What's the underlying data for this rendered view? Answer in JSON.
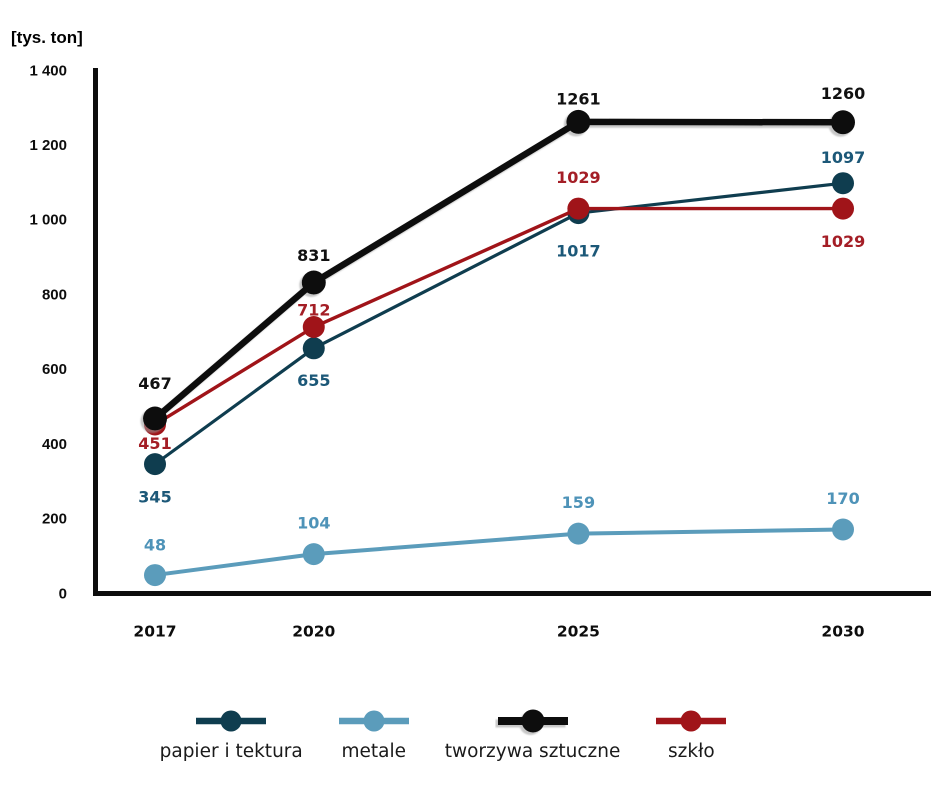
{
  "chart_data": {
    "type": "line",
    "title": "",
    "ylabel": "[tys. ton]",
    "x": [
      2017,
      2020,
      2025,
      2030
    ],
    "x_tick_labels": [
      "2017",
      "2020",
      "2025",
      "2030"
    ],
    "ylim": [
      0,
      1400
    ],
    "y_ticks": [
      0,
      200,
      400,
      600,
      800,
      1000,
      1200,
      1400
    ],
    "y_tick_labels": [
      "0",
      "200",
      "400",
      "600",
      "800",
      "1 000",
      "1 200",
      "1 400"
    ],
    "grid": false,
    "legend_position": "bottom",
    "axis_color": "#0d0d0d",
    "series": [
      {
        "name": "papier i tektura",
        "values": [
          345,
          655,
          1017,
          1097
        ],
        "color": "#0f3d4f",
        "label_color": "#1c5878",
        "line_width": 3.2,
        "dot_radius": 11,
        "z_order": 2,
        "shadow": false,
        "label_dy": [
          33,
          32,
          38,
          -26
        ]
      },
      {
        "name": "metale",
        "values": [
          48,
          104,
          159,
          170
        ],
        "color": "#5b9cbb",
        "label_color": "#4e93b8",
        "line_width": 4,
        "dot_radius": 11,
        "z_order": 1,
        "shadow": false,
        "label_dy": [
          -30,
          -31,
          -31,
          -31
        ]
      },
      {
        "name": "tworzywa sztuczne",
        "values": [
          467,
          831,
          1261,
          1260
        ],
        "color": "#0b0b0b",
        "label_color": "#111111",
        "line_width": 6.5,
        "dot_radius": 12,
        "z_order": 4,
        "shadow": true,
        "label_dy": [
          -35,
          -27,
          -23,
          -29
        ]
      },
      {
        "name": "szkło",
        "values": [
          451,
          712,
          1029,
          1029
        ],
        "color": "#a01419",
        "label_color": "#a41e26",
        "line_width": 3.4,
        "dot_radius": 11,
        "z_order": 3,
        "shadow": false,
        "label_dy": [
          19,
          -17,
          -31,
          33
        ]
      }
    ]
  }
}
